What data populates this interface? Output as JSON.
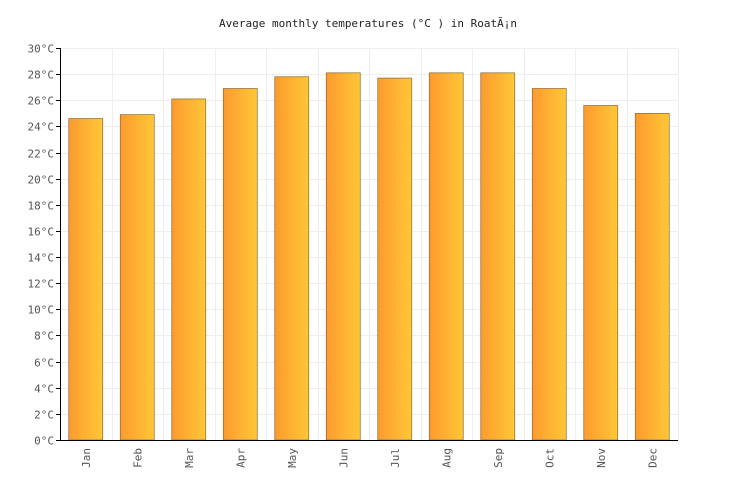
{
  "chart_data": {
    "type": "bar",
    "title": "Average monthly temperatures (°C ) in RoatÃ¡n",
    "categories": [
      "Jan",
      "Feb",
      "Mar",
      "Apr",
      "May",
      "Jun",
      "Jul",
      "Aug",
      "Sep",
      "Oct",
      "Nov",
      "Dec"
    ],
    "values": [
      24.6,
      24.9,
      26.1,
      26.9,
      27.8,
      28.1,
      27.7,
      28.1,
      28.1,
      26.9,
      25.6,
      25.0
    ],
    "ylim": [
      0,
      30
    ],
    "ytick_step": 2,
    "ytick_suffix": "°C",
    "xlabel": "",
    "ylabel": "",
    "grid": true,
    "bar_gradient": [
      "#fd9a2e",
      "#ffc737"
    ]
  }
}
